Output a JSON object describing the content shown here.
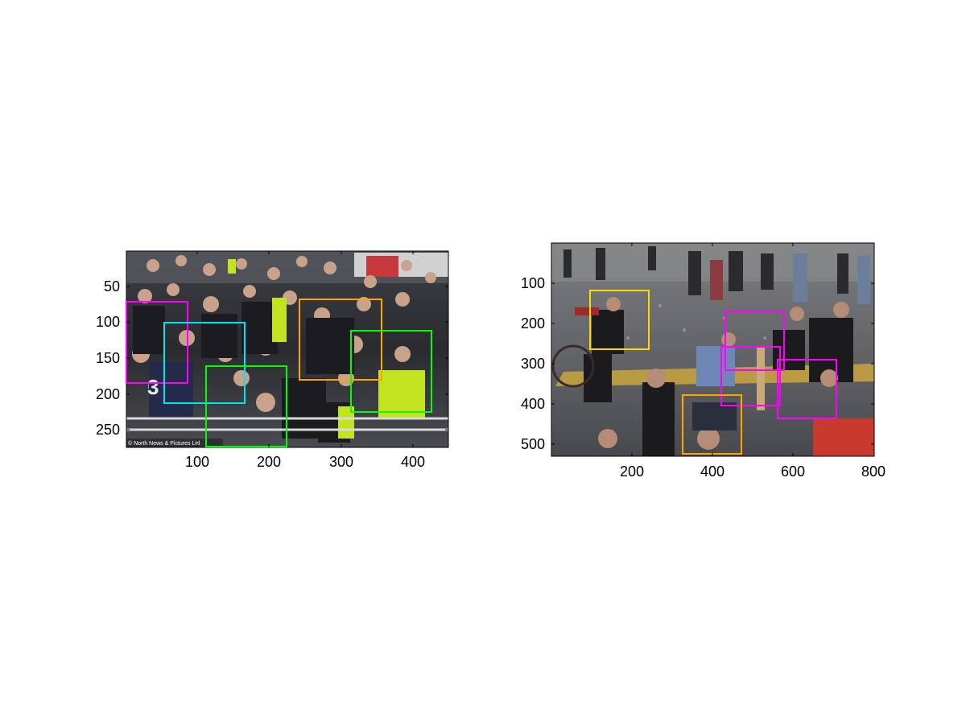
{
  "panels": [
    {
      "id": "left",
      "image_desc": "crowd of football fans and police in stadium stands",
      "credit": "© North News & Pictures Ltd",
      "x_ticks": [
        "100",
        "200",
        "300",
        "400"
      ],
      "y_ticks": [
        "50",
        "100",
        "150",
        "200",
        "250"
      ],
      "boxes": [
        {
          "color": "#ff00ff"
        },
        {
          "color": "#00e5ee"
        },
        {
          "color": "#00ff00"
        },
        {
          "color": "#ffa500"
        },
        {
          "color": "#00ff00"
        }
      ]
    },
    {
      "id": "right",
      "image_desc": "street riot with masked protesters on asphalt",
      "x_ticks": [
        "200",
        "400",
        "600",
        "800"
      ],
      "y_ticks": [
        "100",
        "200",
        "300",
        "400",
        "500"
      ],
      "boxes": [
        {
          "color": "#ffd700"
        },
        {
          "color": "#ff00ff"
        },
        {
          "color": "#ff00ff"
        },
        {
          "color": "#ff00ff"
        },
        {
          "color": "#ffa500"
        }
      ]
    }
  ]
}
